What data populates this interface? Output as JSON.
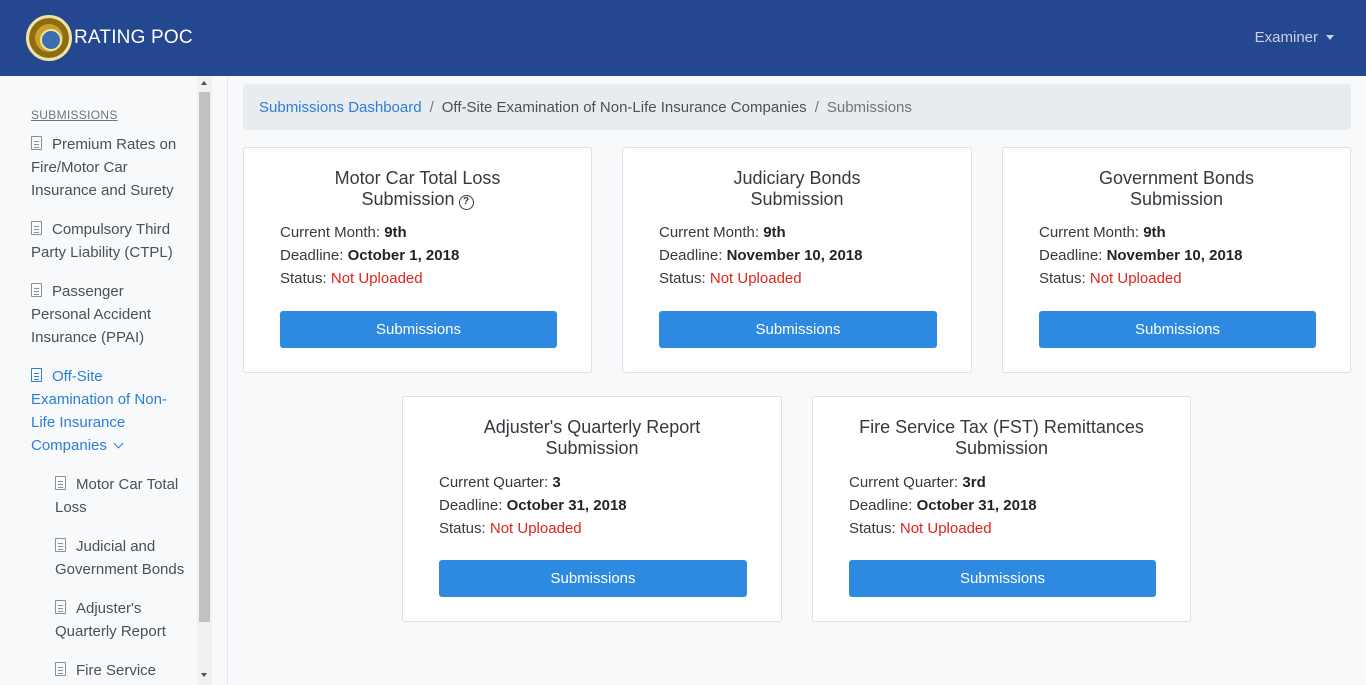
{
  "header": {
    "title": "RATING POC",
    "user_menu": "Examiner"
  },
  "sidebar": {
    "heading": "SUBMISSIONS",
    "items": [
      {
        "label": "Premium Rates on Fire/Motor Car Insurance and Surety"
      },
      {
        "label": "Compulsory Third Party Liability (CTPL)"
      },
      {
        "label": "Passenger Personal Accident Insurance (PPAI)"
      },
      {
        "label": "Off-Site Examination of Non-Life Insurance Companies"
      }
    ],
    "subitems": [
      {
        "label": "Motor Car Total Loss"
      },
      {
        "label": "Judicial and Government Bonds"
      },
      {
        "label": "Adjuster's Quarterly Report"
      },
      {
        "label": "Fire Service"
      }
    ]
  },
  "breadcrumb": {
    "root": "Submissions Dashboard",
    "middle": "Off-Site Examination of Non-Life Insurance Companies",
    "current": "Submissions",
    "separator": "/"
  },
  "cards": [
    {
      "title_line1": "Motor Car Total Loss",
      "title_line2": "Submission",
      "period_label": "Current Month:",
      "period_value": "9th",
      "deadline_label": "Deadline:",
      "deadline_value": "October 1, 2018",
      "status_label": "Status:",
      "status_value": "Not Uploaded",
      "button": "Submissions"
    },
    {
      "title_line1": "Judiciary Bonds",
      "title_line2": "Submission",
      "period_label": "Current Month:",
      "period_value": "9th",
      "deadline_label": "Deadline:",
      "deadline_value": "November 10, 2018",
      "status_label": "Status:",
      "status_value": "Not Uploaded",
      "button": "Submissions"
    },
    {
      "title_line1": "Government Bonds",
      "title_line2": "Submission",
      "period_label": "Current Month:",
      "period_value": "9th",
      "deadline_label": "Deadline:",
      "deadline_value": "November 10, 2018",
      "status_label": "Status:",
      "status_value": "Not Uploaded",
      "button": "Submissions"
    },
    {
      "title_line1": "Adjuster's Quarterly Report",
      "title_line2": "Submission",
      "period_label": "Current Quarter:",
      "period_value": "3",
      "deadline_label": "Deadline:",
      "deadline_value": "October 31, 2018",
      "status_label": "Status:",
      "status_value": "Not Uploaded",
      "button": "Submissions"
    },
    {
      "title_line1": "Fire Service Tax (FST) Remittances",
      "title_line2": "Submission",
      "period_label": "Current Quarter:",
      "period_value": "3rd",
      "deadline_label": "Deadline:",
      "deadline_value": "October 31, 2018",
      "status_label": "Status:",
      "status_value": "Not Uploaded",
      "button": "Submissions"
    }
  ],
  "icons": {
    "help": "?",
    "logo": "insurance-commission-seal"
  },
  "colors": {
    "navbar": "#24478f",
    "accent": "#2b7ed8",
    "button": "#2e8ae0",
    "status_error": "#e0241b"
  }
}
